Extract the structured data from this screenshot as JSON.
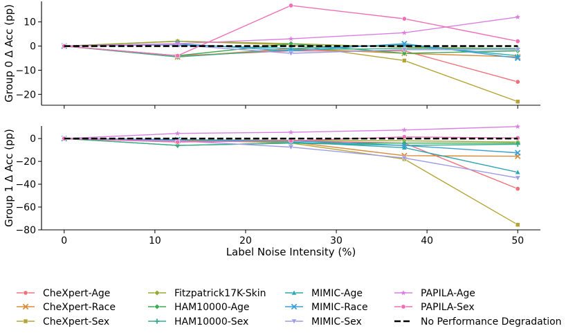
{
  "chart_data": [
    {
      "type": "line",
      "panel": "top",
      "ylabel": "Group 0 Δ Acc (pp)",
      "xlabel": "",
      "xlim": [
        -2.5,
        52.5
      ],
      "ylim": [
        -24.5,
        18.5
      ],
      "yticks": [
        -20,
        -10,
        0,
        10
      ],
      "xticks": [
        0,
        10,
        20,
        30,
        40,
        50
      ],
      "show_xtick_labels": false,
      "x": [
        0,
        12.5,
        25,
        37.5,
        50
      ],
      "series": [
        {
          "name": "CheXpert-Age",
          "values": [
            0,
            -4.0,
            -2.0,
            -2.0,
            -14.8
          ]
        },
        {
          "name": "CheXpert-Race",
          "values": [
            0,
            -4.5,
            -1.0,
            -3.0,
            -4.5
          ]
        },
        {
          "name": "CheXpert-Sex",
          "values": [
            0,
            2.0,
            0.5,
            -6.0,
            -23.0
          ]
        },
        {
          "name": "Fitzpatrick17K-Skin",
          "values": [
            0,
            2.0,
            1.0,
            -0.5,
            -1.0
          ]
        },
        {
          "name": "HAM10000-Age",
          "values": [
            0,
            -4.0,
            1.0,
            -3.0,
            -2.0
          ]
        },
        {
          "name": "HAM10000-Sex",
          "values": [
            0,
            -4.5,
            -1.5,
            -1.0,
            -1.0
          ]
        },
        {
          "name": "MIMIC-Age",
          "values": [
            0,
            0.5,
            -1.0,
            0.5,
            -4.0
          ]
        },
        {
          "name": "MIMIC-Race",
          "values": [
            0,
            1.0,
            -2.0,
            1.0,
            -5.0
          ]
        },
        {
          "name": "MIMIC-Sex",
          "values": [
            0,
            0.5,
            -3.0,
            -1.5,
            -1.5
          ]
        },
        {
          "name": "PAPILA-Age",
          "values": [
            0,
            1.0,
            3.0,
            5.5,
            12.0
          ]
        },
        {
          "name": "PAPILA-Sex",
          "values": [
            0,
            -4.0,
            16.8,
            11.3,
            2.0
          ]
        },
        {
          "name": "No Performance Degradation",
          "values": [
            0,
            0,
            0,
            0,
            0
          ]
        }
      ]
    },
    {
      "type": "line",
      "panel": "bottom",
      "ylabel": "Group 1 Δ Acc (pp)",
      "xlabel": "Label Noise Intensity (%)",
      "xlim": [
        -2.5,
        52.5
      ],
      "ylim": [
        -80,
        11
      ],
      "yticks": [
        -80,
        -60,
        -40,
        -20,
        0
      ],
      "xticks": [
        0,
        10,
        20,
        30,
        40,
        50
      ],
      "show_xtick_labels": true,
      "x": [
        0,
        12.5,
        25,
        37.5,
        50
      ],
      "series": [
        {
          "name": "CheXpert-Age",
          "values": [
            0,
            -3.0,
            -2.0,
            -4.0,
            -44.0
          ]
        },
        {
          "name": "CheXpert-Race",
          "values": [
            0,
            -2.0,
            -3.0,
            -15.0,
            -15.5
          ]
        },
        {
          "name": "CheXpert-Sex",
          "values": [
            0,
            -1.0,
            -4.0,
            -18.0,
            -75.5
          ]
        },
        {
          "name": "Fitzpatrick17K-Skin",
          "values": [
            0,
            -1.0,
            -1.5,
            -2.0,
            -3.0
          ]
        },
        {
          "name": "HAM10000-Age",
          "values": [
            0,
            -6.0,
            -4.0,
            -4.0,
            -4.0
          ]
        },
        {
          "name": "HAM10000-Sex",
          "values": [
            0,
            -6.0,
            -4.0,
            -6.0,
            -5.0
          ]
        },
        {
          "name": "MIMIC-Age",
          "values": [
            0,
            -1.0,
            -3.0,
            -8.0,
            -29.5
          ]
        },
        {
          "name": "MIMIC-Race",
          "values": [
            0,
            -1.0,
            -2.0,
            -6.0,
            -12.5
          ]
        },
        {
          "name": "MIMIC-Sex",
          "values": [
            0,
            -2.0,
            -7.5,
            -17.0,
            -34.5
          ]
        },
        {
          "name": "PAPILA-Age",
          "values": [
            0,
            4.5,
            5.5,
            7.5,
            10.5
          ]
        },
        {
          "name": "PAPILA-Sex",
          "values": [
            0,
            -3.0,
            -2.0,
            1.5,
            0.5
          ]
        },
        {
          "name": "No Performance Degradation",
          "values": [
            0,
            0,
            0,
            0,
            0
          ]
        }
      ]
    }
  ],
  "legend": {
    "placement": "bottom",
    "entries": [
      {
        "name": "CheXpert-Age",
        "color": "#f0707a",
        "marker": "circle"
      },
      {
        "name": "CheXpert-Race",
        "color": "#d98a3a",
        "marker": "x"
      },
      {
        "name": "CheXpert-Sex",
        "color": "#b5a335",
        "marker": "square"
      },
      {
        "name": "Fitzpatrick17K-Skin",
        "color": "#93a830",
        "marker": "diamond"
      },
      {
        "name": "HAM10000-Age",
        "color": "#3faa52",
        "marker": "diamond"
      },
      {
        "name": "HAM10000-Sex",
        "color": "#36ad8a",
        "marker": "plus"
      },
      {
        "name": "MIMIC-Age",
        "color": "#2fa6b1",
        "marker": "triangle-up"
      },
      {
        "name": "MIMIC-Race",
        "color": "#3a9fd6",
        "marker": "x"
      },
      {
        "name": "MIMIC-Sex",
        "color": "#9c9be6",
        "marker": "triangle-down"
      },
      {
        "name": "PAPILA-Age",
        "color": "#d97fe0",
        "marker": "star"
      },
      {
        "name": "PAPILA-Sex",
        "color": "#ef6fb7",
        "marker": "circle"
      },
      {
        "name": "No Performance Degradation",
        "color": "#000000",
        "marker": "dash"
      }
    ]
  }
}
